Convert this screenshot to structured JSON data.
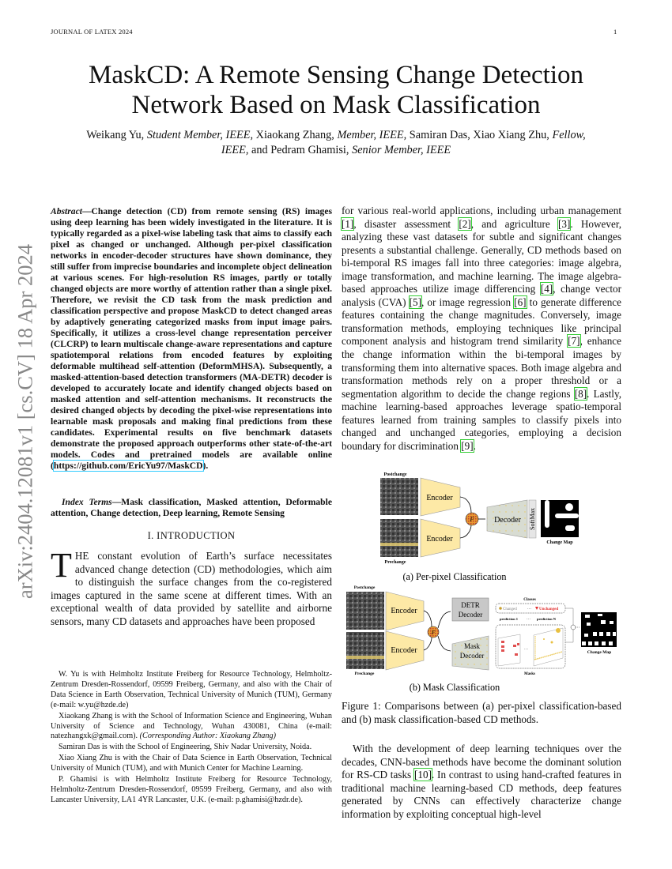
{
  "header": {
    "journal": "JOURNAL OF LATEX 2024",
    "page_number": "1"
  },
  "sidebar": {
    "arxiv_id": "arXiv:2404.12081v1  [cs.CV]  18 Apr 2024"
  },
  "title": {
    "line1": "MaskCD: A Remote Sensing Change Detection",
    "line2": "Network Based on Mask Classification"
  },
  "authors": {
    "a1": "Weikang Yu,",
    "a1_role": "Student Member, IEEE,",
    "a2": "Xiaokang Zhang,",
    "a2_role": "Member, IEEE,",
    "a3": "Samiran Das, Xiao Xiang Zhu,",
    "a3_role": "Fellow, IEEE,",
    "a4": "and Pedram Ghamisi,",
    "a4_role": "Senior Member, IEEE"
  },
  "abstract": {
    "label": "Abstract",
    "text": "—Change detection (CD) from remote sensing (RS) images using deep learning has been widely investigated in the literature. It is typically regarded as a pixel-wise labeling task that aims to classify each pixel as changed or unchanged. Although per-pixel classification networks in encoder-decoder structures have shown dominance, they still suffer from imprecise boundaries and incomplete object delineation at various scenes. For high-resolution RS images, partly or totally changed objects are more worthy of attention rather than a single pixel. Therefore, we revisit the CD task from the mask prediction and classification perspective and propose MaskCD to detect changed areas by adaptively generating categorized masks from input image pairs. Specifically, it utilizes a cross-level change representation perceiver (CLCRP) to learn multiscale change-aware representations and capture spatiotemporal relations from encoded features by exploiting deformable multihead self-attention (DeformMHSA). Subsequently, a masked-attention-based detection transformers (MA-DETR) decoder is developed to accurately locate and identify changed objects based on masked attention and self-attention mechanisms. It reconstructs the desired changed objects by decoding the pixel-wise representations into learnable mask proposals and making final predictions from these candidates. Experimental results on five benchmark datasets demonstrate the proposed approach outperforms other state-of-the-art models. Codes and pretrained models are available online (",
    "url": "https://github.com/EricYu97/MaskCD",
    "end": ")."
  },
  "index_terms": {
    "label": "Index Terms",
    "text": "—Mask classification, Masked attention, Deformable attention, Change detection, Deep learning, Remote Sensing"
  },
  "section": {
    "title": "I. INTRODUCTION"
  },
  "intro": {
    "dropcap": "T",
    "text": "HE constant evolution of Earth’s surface necessitates advanced change detection (CD) methodologies, which aim to distinguish the surface changes from the co-registered images captured in the same scene at different times. With an exceptional wealth of data provided by satellite and airborne sensors, many CD datasets and approaches have been proposed"
  },
  "footnotes": [
    "W. Yu is with Helmholtz Institute Freiberg for Resource Technology, Helmholtz-Zentrum Dresden-Rossendorf, 09599 Freiberg, Germany, and also with the Chair of Data Science in Earth Observation, Technical University of Munich (TUM), Germany (e-mail: w.yu@hzde.de)",
    "Xiaokang Zhang is with the School of Information Science and Engineering, Wuhan University of Science and Technology, Wuhan 430081, China (e-mail: natezhangxk@gmail.com).",
    "Samiran Das is with the School of Engineering, Shiv Nadar University, Noida.",
    "Xiao Xiang Zhu is with the Chair of Data Science in Earth Observation, Technical University of Munich (TUM), and with Munich Center for Machine Learning.",
    "P. Ghamisi is with Helmholtz Institute Freiberg for Resource Technology, Helmholtz-Zentrum Dresden-Rossendorf, 09599 Freiberg, Germany, and also with Lancaster University, LA1 4YR Lancaster, U.K. (e-mail: p.ghamisi@hzdr.de)."
  ],
  "footnote_corresponding": "(Corresponding Author: Xiaokang Zhang)",
  "right_col": {
    "p1_a": "for various real-world applications, including urban management ",
    "r1": "[1]",
    "p1_b": ", disaster assessment ",
    "r2": "[2]",
    "p1_c": ", and agriculture ",
    "r3": "[3]",
    "p1_d": ". However, analyzing these vast datasets for subtle and significant changes presents a substantial challenge. Generally, CD methods based on bi-temporal RS images fall into three categories: image algebra, image transformation, and machine learning. The image algebra-based approaches utilize image differencing ",
    "r4": "[4]",
    "p1_e": ", change vector analysis (CVA) ",
    "r5": "[5]",
    "p1_f": ", or image regression ",
    "r6": "[6]",
    "p1_g": " to generate difference features containing the change magnitudes. Conversely, image transformation methods, employing techniques like principal component analysis and histogram trend similarity ",
    "r7": "[7]",
    "p1_h": ", enhance the change information within the bi-temporal images by transforming them into alternative spaces. Both image algebra and transformation methods rely on a proper threshold or a segmentation algorithm to decide the change regions ",
    "r8": "[8]",
    "p1_i": ". Lastly, machine learning-based approaches leverage spatio-temporal features learned from training samples to classify pixels into changed and unchanged categories, employing a decision boundary for discrimination ",
    "r9": "[9]",
    "p1_j": ".",
    "p2_a": "With the development of deep learning techniques over the decades, CNN-based methods have become the dominant solution for RS-CD tasks ",
    "r10": "[10]",
    "p2_b": ". In contrast to using hand-crafted features in traditional machine learning-based CD methods, deep features generated by CNNs can effectively characterize change information by exploiting conceptual high-level"
  },
  "figure": {
    "a": {
      "postchange": "Postchange",
      "prechange": "Prechange",
      "encoder": "Encoder",
      "fusion": "F",
      "decoder": "Decoder",
      "softmax": "SoftMax",
      "change_map": "Change Map",
      "caption": "(a) Per-pixel Classification"
    },
    "b": {
      "postchange": "Postchange",
      "prechange": "Prechange",
      "encoder": "Encoder",
      "fusion": "F",
      "detr_decoder_1": "DETR",
      "detr_decoder_2": "Decoder",
      "mask_decoder_1": "Mask",
      "mask_decoder_2": "Decoder",
      "classes": "Classes",
      "changed": "Changed",
      "ellipsis": "···",
      "unchanged": "Unchanged",
      "prediction_1": "prediction 1",
      "prediction_n": "prediction N",
      "masks": "Masks",
      "change_map": "Change Map",
      "caption": "(b) Mask Classification"
    },
    "caption": "Figure 1: Comparisons between (a) per-pixel classification-based and (b) mask classification-based CD methods.",
    "colors": {
      "encoder": "#fde9a6",
      "decoder": "#d8dcd2",
      "detr": "#c8c8c8",
      "unchanged": "#e03030",
      "mask_red": "#e05050"
    }
  }
}
